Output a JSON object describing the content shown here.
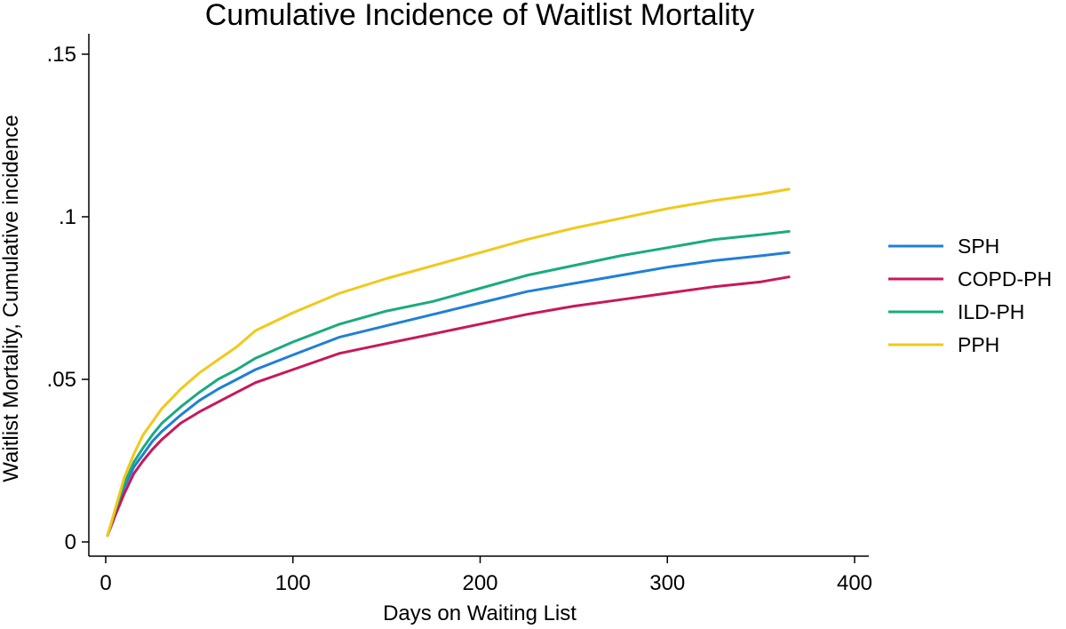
{
  "chart_data": {
    "type": "line",
    "title": "Cumulative Incidence of Waitlist Mortality",
    "xlabel": "Days on Waiting List",
    "ylabel": "Waitlist Mortality, Cumulative incidence",
    "xlim": [
      0,
      400
    ],
    "ylim": [
      0,
      0.15
    ],
    "x_ticks": [
      0,
      100,
      200,
      300,
      400
    ],
    "x_tick_labels": [
      "0",
      "100",
      "200",
      "300",
      "400"
    ],
    "y_ticks": [
      0,
      0.05,
      0.1,
      0.15
    ],
    "y_tick_labels": [
      "0",
      ".05",
      ".1",
      ".15"
    ],
    "grid": false,
    "legend_position": "right",
    "x": [
      1,
      5,
      10,
      15,
      20,
      25,
      30,
      40,
      50,
      60,
      70,
      80,
      100,
      125,
      150,
      175,
      200,
      225,
      250,
      275,
      300,
      325,
      350,
      365
    ],
    "series": [
      {
        "name": "SPH",
        "color": "#1f7fd8",
        "values": [
          0.002,
          0.009,
          0.017,
          0.023,
          0.027,
          0.031,
          0.034,
          0.039,
          0.0435,
          0.047,
          0.05,
          0.053,
          0.0575,
          0.063,
          0.0665,
          0.07,
          0.0735,
          0.077,
          0.0795,
          0.082,
          0.0845,
          0.0865,
          0.088,
          0.089
        ]
      },
      {
        "name": "COPD-PH",
        "color": "#c8185a",
        "values": [
          0.002,
          0.008,
          0.015,
          0.021,
          0.025,
          0.0285,
          0.0315,
          0.0365,
          0.04,
          0.043,
          0.046,
          0.049,
          0.053,
          0.058,
          0.061,
          0.064,
          0.067,
          0.07,
          0.0725,
          0.0745,
          0.0765,
          0.0785,
          0.08,
          0.0815
        ]
      },
      {
        "name": "ILD-PH",
        "color": "#1aab7e",
        "values": [
          0.002,
          0.0095,
          0.018,
          0.0245,
          0.029,
          0.033,
          0.0365,
          0.0415,
          0.046,
          0.05,
          0.053,
          0.0565,
          0.0615,
          0.067,
          0.071,
          0.074,
          0.078,
          0.082,
          0.085,
          0.088,
          0.0905,
          0.093,
          0.0945,
          0.0955
        ]
      },
      {
        "name": "PPH",
        "color": "#f2c81a",
        "values": [
          0.002,
          0.01,
          0.02,
          0.027,
          0.033,
          0.037,
          0.041,
          0.047,
          0.052,
          0.056,
          0.06,
          0.065,
          0.0705,
          0.0765,
          0.081,
          0.085,
          0.089,
          0.093,
          0.0965,
          0.0995,
          0.1025,
          0.105,
          0.107,
          0.1085
        ]
      }
    ]
  }
}
